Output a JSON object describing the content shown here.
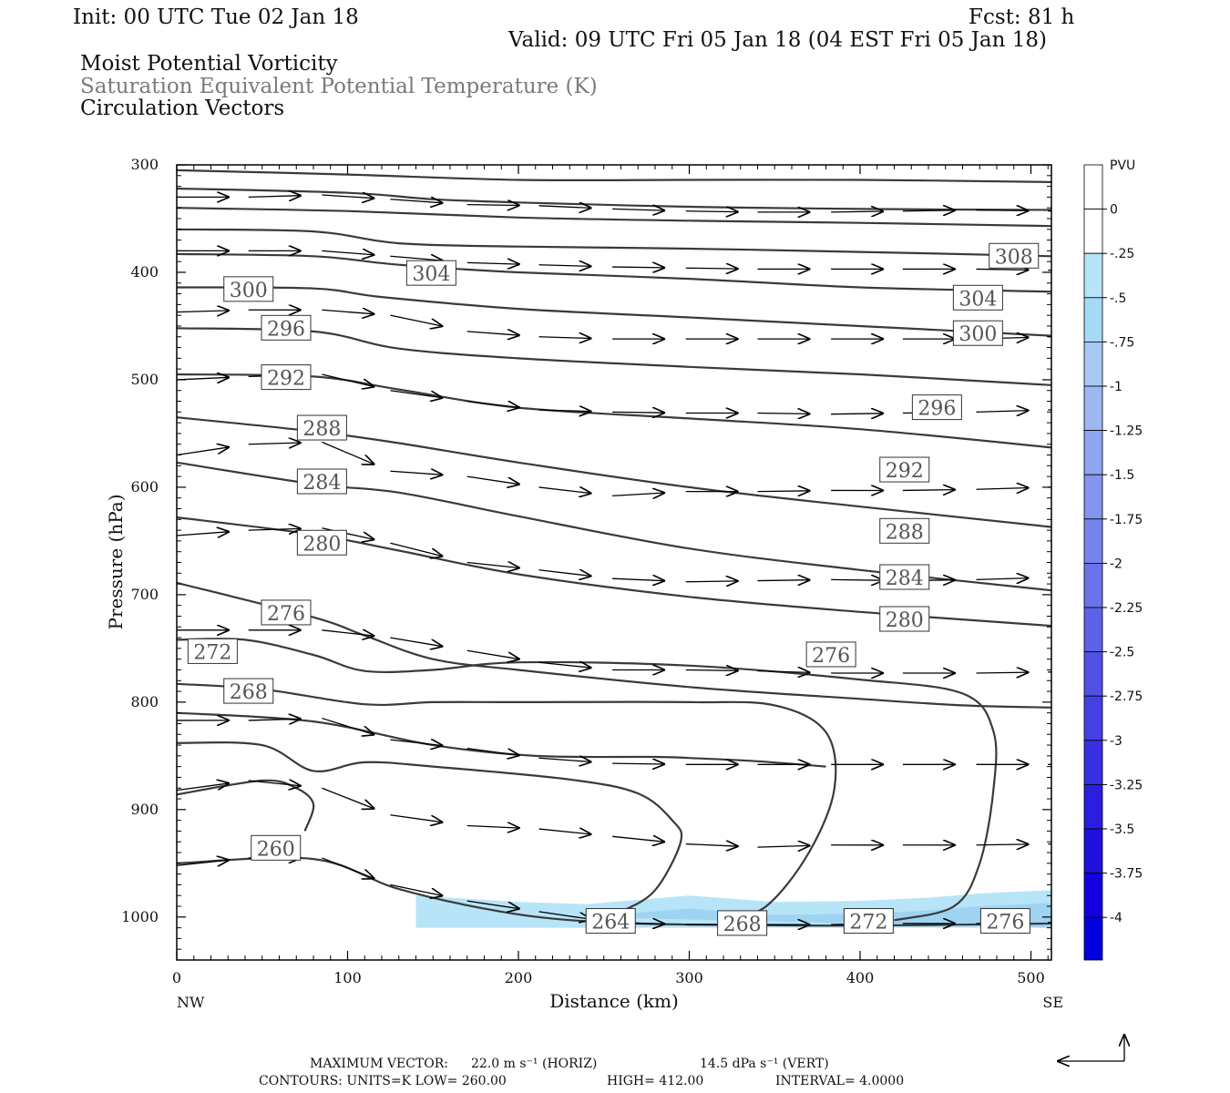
{
  "header": {
    "init": "Init: 00 UTC Tue 02 Jan 18",
    "fcst": "Fcst:   81 h",
    "valid": "Valid: 09 UTC Fri 05 Jan 18 (04 EST Fri 05 Jan 18)",
    "line1": "Moist Potential Vorticity",
    "line2": "Saturation Equivalent Potential Temperature (K)",
    "line3": "Circulation Vectors"
  },
  "footer": {
    "max_vector_label": "MAXIMUM VECTOR:",
    "horiz": "22.0 m s⁻¹ (HORIZ)",
    "vert": "14.5 dPa s⁻¹ (VERT)",
    "contours": "CONTOURS:  UNITS=K  LOW=  260.00",
    "high": "HIGH=  412.00",
    "interval": "INTERVAL=   4.0000"
  },
  "colors": {
    "contour": "#3a3a3a",
    "arrow": "#000000",
    "pv_light": "#b8e4f8",
    "pv_mid": "#9ed3f2"
  },
  "chart_data": {
    "type": "cross-section",
    "xlabel": "Distance (km)",
    "ylabel": "Pressure (hPa)",
    "xlim": [
      0,
      512
    ],
    "ylim": [
      1040,
      300
    ],
    "x_ticks": [
      0,
      100,
      200,
      300,
      400,
      500
    ],
    "y_ticks": [
      300,
      400,
      500,
      600,
      700,
      800,
      900,
      1000
    ],
    "x_end_labels": {
      "left": "NW",
      "right": "SE"
    },
    "colorbar": {
      "title": "PVU",
      "ticks": [
        "0",
        "-.25",
        "-.5",
        "-.75",
        "-1",
        "-1.25",
        "-1.5",
        "-1.75",
        "-2",
        "-2.25",
        "-2.5",
        "-2.75",
        "-3",
        "-3.25",
        "-3.5",
        "-3.75",
        "-4"
      ],
      "colors": [
        "#ffffff",
        "#ffffff",
        "#b8e4f8",
        "#a6d9f5",
        "#a8c8f4",
        "#9cb7f2",
        "#8fa6f0",
        "#8395ee",
        "#7784ec",
        "#6a73ea",
        "#5e62e8",
        "#5151e6",
        "#4540e4",
        "#382fe2",
        "#2c1ee0",
        "#1f10de",
        "#1300dc",
        "#0000dc"
      ]
    },
    "contour_labels": [
      {
        "text": "308",
        "x": 490,
        "p": 385
      },
      {
        "text": "304",
        "x": 149,
        "p": 401
      },
      {
        "text": "304",
        "x": 469,
        "p": 424
      },
      {
        "text": "300",
        "x": 42,
        "p": 416
      },
      {
        "text": "300",
        "x": 469,
        "p": 457
      },
      {
        "text": "296",
        "x": 64,
        "p": 452
      },
      {
        "text": "296",
        "x": 445,
        "p": 526
      },
      {
        "text": "292",
        "x": 64,
        "p": 498
      },
      {
        "text": "292",
        "x": 426,
        "p": 584
      },
      {
        "text": "288",
        "x": 85,
        "p": 545
      },
      {
        "text": "288",
        "x": 426,
        "p": 641
      },
      {
        "text": "284",
        "x": 85,
        "p": 595
      },
      {
        "text": "284",
        "x": 426,
        "p": 684
      },
      {
        "text": "280",
        "x": 85,
        "p": 652
      },
      {
        "text": "280",
        "x": 426,
        "p": 723
      },
      {
        "text": "276",
        "x": 64,
        "p": 717
      },
      {
        "text": "276",
        "x": 383,
        "p": 756
      },
      {
        "text": "272",
        "x": 21,
        "p": 753
      },
      {
        "text": "272",
        "x": 405,
        "p": 1004
      },
      {
        "text": "268",
        "x": 42,
        "p": 790
      },
      {
        "text": "268",
        "x": 331,
        "p": 1006
      },
      {
        "text": "264",
        "x": 254,
        "p": 1004
      },
      {
        "text": "260",
        "x": 58,
        "p": 936
      },
      {
        "text": "276",
        "x": 485,
        "p": 1004
      }
    ],
    "contours": [
      [
        [
          0,
          305
        ],
        [
          100,
          309
        ],
        [
          200,
          314
        ],
        [
          300,
          314
        ],
        [
          400,
          314
        ],
        [
          512,
          316
        ]
      ],
      [
        [
          0,
          322
        ],
        [
          100,
          326
        ],
        [
          150,
          332
        ],
        [
          200,
          335
        ],
        [
          300,
          339
        ],
        [
          400,
          341
        ],
        [
          512,
          342
        ]
      ],
      [
        [
          0,
          340
        ],
        [
          100,
          343
        ],
        [
          200,
          349
        ],
        [
          300,
          352
        ],
        [
          400,
          354
        ],
        [
          512,
          357
        ]
      ],
      [
        [
          0,
          360
        ],
        [
          80,
          362
        ],
        [
          130,
          373
        ],
        [
          200,
          376
        ],
        [
          300,
          378
        ],
        [
          400,
          381
        ],
        [
          512,
          385
        ]
      ],
      [
        [
          0,
          383
        ],
        [
          80,
          385
        ],
        [
          130,
          393
        ],
        [
          200,
          400
        ],
        [
          300,
          406
        ],
        [
          400,
          414
        ],
        [
          512,
          418
        ]
      ],
      [
        [
          0,
          414
        ],
        [
          80,
          415
        ],
        [
          120,
          423
        ],
        [
          200,
          434
        ],
        [
          300,
          442
        ],
        [
          400,
          450
        ],
        [
          512,
          459
        ]
      ],
      [
        [
          0,
          452
        ],
        [
          80,
          455
        ],
        [
          130,
          471
        ],
        [
          200,
          480
        ],
        [
          300,
          488
        ],
        [
          400,
          495
        ],
        [
          512,
          505
        ]
      ],
      [
        [
          0,
          495
        ],
        [
          80,
          497
        ],
        [
          130,
          509
        ],
        [
          200,
          526
        ],
        [
          300,
          536
        ],
        [
          400,
          546
        ],
        [
          512,
          563
        ]
      ],
      [
        [
          0,
          535
        ],
        [
          80,
          548
        ],
        [
          130,
          559
        ],
        [
          200,
          577
        ],
        [
          300,
          600
        ],
        [
          400,
          618
        ],
        [
          512,
          637
        ]
      ],
      [
        [
          0,
          577
        ],
        [
          80,
          597
        ],
        [
          130,
          605
        ],
        [
          200,
          627
        ],
        [
          300,
          657
        ],
        [
          400,
          677
        ],
        [
          512,
          696
        ]
      ],
      [
        [
          0,
          628
        ],
        [
          80,
          644
        ],
        [
          130,
          659
        ],
        [
          200,
          681
        ],
        [
          300,
          702
        ],
        [
          400,
          716
        ],
        [
          512,
          729
        ]
      ],
      [
        [
          0,
          689
        ],
        [
          80,
          721
        ],
        [
          110,
          738
        ],
        [
          150,
          760
        ],
        [
          200,
          770
        ],
        [
          300,
          786
        ],
        [
          400,
          797
        ],
        [
          460,
          803
        ],
        [
          512,
          805
        ]
      ],
      [
        [
          0,
          742
        ],
        [
          40,
          742
        ],
        [
          80,
          756
        ],
        [
          110,
          771
        ],
        [
          150,
          770
        ],
        [
          200,
          763
        ],
        [
          300,
          766
        ],
        [
          400,
          779
        ],
        [
          460,
          792
        ],
        [
          478,
          827
        ],
        [
          478,
          882
        ],
        [
          470,
          950
        ],
        [
          455,
          990
        ],
        [
          420,
          1003
        ]
      ],
      [
        [
          0,
          783
        ],
        [
          50,
          788
        ],
        [
          110,
          802
        ],
        [
          150,
          800
        ],
        [
          200,
          800
        ],
        [
          300,
          800
        ],
        [
          350,
          803
        ],
        [
          380,
          828
        ],
        [
          385,
          880
        ],
        [
          370,
          940
        ],
        [
          345,
          990
        ],
        [
          320,
          1003
        ]
      ],
      [
        [
          0,
          810
        ],
        [
          80,
          818
        ],
        [
          150,
          840
        ],
        [
          210,
          850
        ],
        [
          280,
          851
        ],
        [
          300,
          852
        ],
        [
          340,
          855
        ],
        [
          380,
          860
        ]
      ],
      [
        [
          0,
          838
        ],
        [
          50,
          840
        ],
        [
          80,
          864
        ],
        [
          110,
          856
        ],
        [
          150,
          860
        ],
        [
          230,
          872
        ],
        [
          270,
          885
        ],
        [
          290,
          910
        ],
        [
          295,
          930
        ],
        [
          280,
          975
        ],
        [
          260,
          995
        ],
        [
          245,
          1003
        ]
      ],
      [
        [
          0,
          886
        ],
        [
          50,
          873
        ],
        [
          70,
          880
        ],
        [
          80,
          895
        ],
        [
          75,
          920
        ]
      ],
      [
        [
          0,
          950
        ],
        [
          80,
          946
        ],
        [
          130,
          974
        ],
        [
          190,
          995
        ],
        [
          240,
          1004
        ],
        [
          300,
          1007
        ],
        [
          400,
          1008
        ],
        [
          512,
          1006
        ]
      ]
    ],
    "pv_fill_pv": "-0.25 to -0.75",
    "pv_region": [
      [
        140,
        980
      ],
      [
        200,
        986
      ],
      [
        240,
        988
      ],
      [
        300,
        980
      ],
      [
        350,
        986
      ],
      [
        400,
        985
      ],
      [
        440,
        982
      ],
      [
        470,
        978
      ],
      [
        512,
        975
      ],
      [
        512,
        1010
      ],
      [
        140,
        1010
      ]
    ],
    "vectors": [
      [
        0,
        330,
        1
      ],
      [
        42,
        330,
        1
      ],
      [
        85,
        328,
        1
      ],
      [
        125,
        332,
        1
      ],
      [
        170,
        337,
        1
      ],
      [
        212,
        338,
        1
      ],
      [
        255,
        341,
        1
      ],
      [
        298,
        343,
        1
      ],
      [
        340,
        344,
        1
      ],
      [
        383,
        344,
        1
      ],
      [
        425,
        343,
        1
      ],
      [
        468,
        342,
        1
      ],
      [
        510,
        343,
        1
      ],
      [
        0,
        380,
        1
      ],
      [
        42,
        380,
        1
      ],
      [
        85,
        380,
        1
      ],
      [
        125,
        385,
        1
      ],
      [
        170,
        391,
        1
      ],
      [
        212,
        393,
        1
      ],
      [
        255,
        395,
        1
      ],
      [
        298,
        396,
        1
      ],
      [
        340,
        397,
        1
      ],
      [
        383,
        397,
        1
      ],
      [
        425,
        397,
        1
      ],
      [
        468,
        397,
        1
      ],
      [
        510,
        398,
        1
      ],
      [
        0,
        437,
        1
      ],
      [
        42,
        435,
        1
      ],
      [
        85,
        435,
        1
      ],
      [
        125,
        440,
        1
      ],
      [
        170,
        455,
        1
      ],
      [
        212,
        460,
        1
      ],
      [
        255,
        462,
        1
      ],
      [
        298,
        462,
        1
      ],
      [
        340,
        462,
        1
      ],
      [
        383,
        462,
        1
      ],
      [
        425,
        462,
        1
      ],
      [
        468,
        462,
        1
      ],
      [
        510,
        460,
        1
      ],
      [
        0,
        500,
        1
      ],
      [
        42,
        497,
        1
      ],
      [
        85,
        495,
        1
      ],
      [
        125,
        510,
        1
      ],
      [
        170,
        520,
        1
      ],
      [
        212,
        528,
        1
      ],
      [
        255,
        530,
        1
      ],
      [
        298,
        531,
        1
      ],
      [
        340,
        531,
        1
      ],
      [
        383,
        532,
        1
      ],
      [
        425,
        531,
        1
      ],
      [
        468,
        530,
        1
      ],
      [
        510,
        528,
        1
      ],
      [
        0,
        570,
        1
      ],
      [
        42,
        560,
        1
      ],
      [
        85,
        558,
        1
      ],
      [
        125,
        585,
        1
      ],
      [
        170,
        590,
        1
      ],
      [
        212,
        600,
        1
      ],
      [
        255,
        608,
        1
      ],
      [
        298,
        604,
        1
      ],
      [
        340,
        604,
        1
      ],
      [
        383,
        603,
        1
      ],
      [
        425,
        603,
        1
      ],
      [
        468,
        602,
        1
      ],
      [
        510,
        600,
        1
      ],
      [
        0,
        645,
        1
      ],
      [
        42,
        640,
        1
      ],
      [
        85,
        638,
        1
      ],
      [
        125,
        652,
        1
      ],
      [
        170,
        670,
        1
      ],
      [
        212,
        677,
        1
      ],
      [
        255,
        685,
        1
      ],
      [
        298,
        688,
        1
      ],
      [
        340,
        687,
        1
      ],
      [
        383,
        686,
        1
      ],
      [
        425,
        687,
        1
      ],
      [
        468,
        686,
        1
      ],
      [
        510,
        684,
        1
      ],
      [
        0,
        733,
        1
      ],
      [
        42,
        733,
        1
      ],
      [
        85,
        733,
        1
      ],
      [
        125,
        740,
        1
      ],
      [
        170,
        752,
        1
      ],
      [
        212,
        763,
        1
      ],
      [
        255,
        770,
        1
      ],
      [
        298,
        770,
        1
      ],
      [
        340,
        771,
        1
      ],
      [
        383,
        773,
        1
      ],
      [
        425,
        773,
        1
      ],
      [
        468,
        773,
        1
      ],
      [
        510,
        772,
        1
      ],
      [
        0,
        817,
        1
      ],
      [
        42,
        817,
        1
      ],
      [
        85,
        815,
        1
      ],
      [
        125,
        835,
        1
      ],
      [
        170,
        843,
        1
      ],
      [
        212,
        852,
        1
      ],
      [
        255,
        857,
        1
      ],
      [
        298,
        858,
        1
      ],
      [
        340,
        858,
        1
      ],
      [
        383,
        858,
        1
      ],
      [
        425,
        858,
        1
      ],
      [
        468,
        858,
        1
      ],
      [
        510,
        858,
        1
      ],
      [
        0,
        882,
        1
      ],
      [
        42,
        873,
        1
      ],
      [
        85,
        880,
        1
      ],
      [
        125,
        905,
        1
      ],
      [
        170,
        915,
        1
      ],
      [
        212,
        918,
        1
      ],
      [
        255,
        925,
        1
      ],
      [
        298,
        932,
        1
      ],
      [
        340,
        935,
        1
      ],
      [
        383,
        933,
        1
      ],
      [
        425,
        933,
        1
      ],
      [
        468,
        933,
        1
      ],
      [
        510,
        932,
        1
      ],
      [
        0,
        952,
        1
      ],
      [
        42,
        945,
        1
      ],
      [
        85,
        945,
        1
      ],
      [
        125,
        970,
        1
      ],
      [
        170,
        985,
        1
      ],
      [
        212,
        995,
        1
      ],
      [
        255,
        1005,
        1
      ],
      [
        298,
        1007,
        1
      ],
      [
        340,
        1007,
        1
      ],
      [
        383,
        1007,
        1
      ],
      [
        425,
        1006,
        1
      ],
      [
        468,
        1006,
        1
      ],
      [
        510,
        1005,
        1
      ]
    ]
  }
}
